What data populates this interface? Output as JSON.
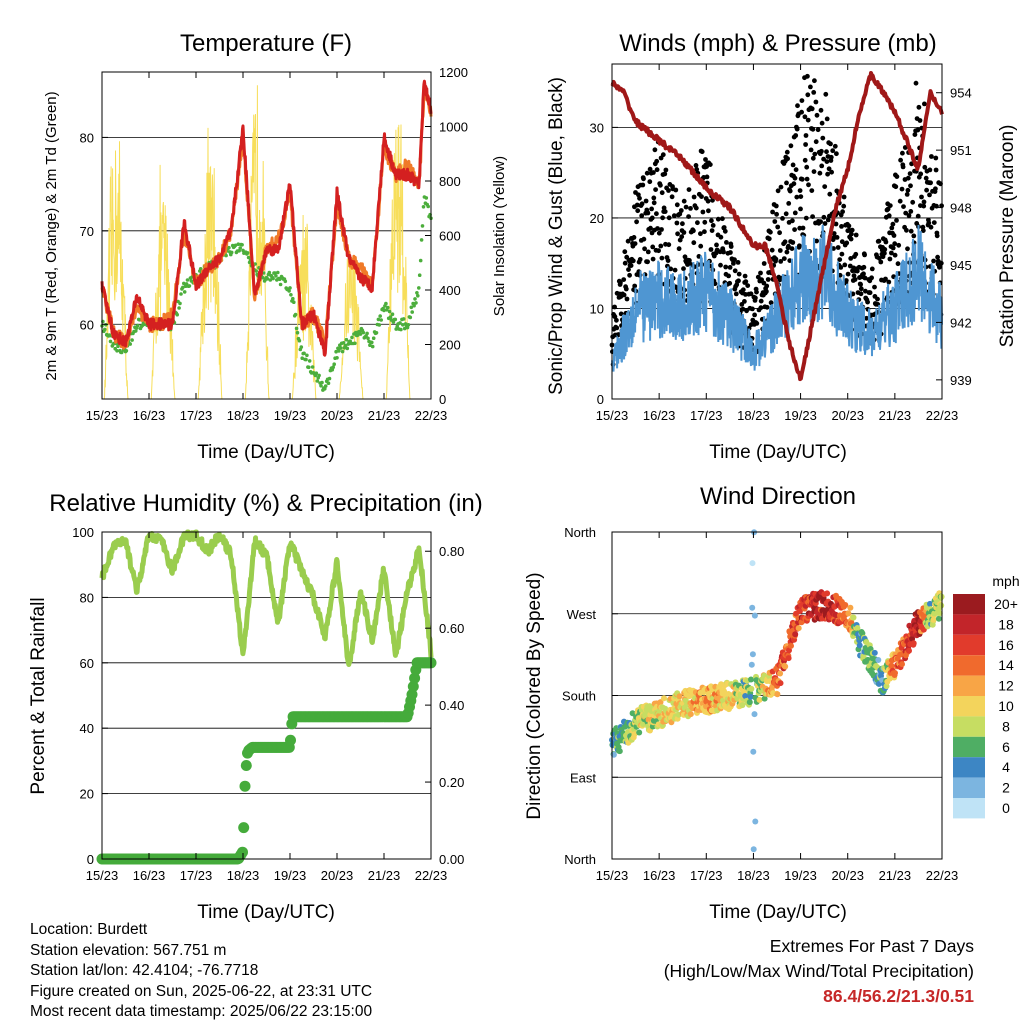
{
  "colors": {
    "red": "#d42020",
    "orange": "#f07a28",
    "green_td": "#4cae3c",
    "yellow": "#f7de5a",
    "blue": "#4f96d2",
    "black": "#000000",
    "maroon": "#a01818",
    "rh": "#9acd4e",
    "rain": "#45ab3b",
    "extremes": "#c62828"
  },
  "x_ticks": [
    "15/23",
    "16/23",
    "17/23",
    "18/23",
    "19/23",
    "20/23",
    "21/23",
    "22/23"
  ],
  "panels": {
    "temperature": {
      "title": "Temperature (F)",
      "xlabel": "Time (Day/UTC)",
      "ylabel_left": "2m & 9m T (Red, Orange) & 2m Td (Green)",
      "ylabel_right": "Solar Insolation (Yellow)",
      "left_ticks": [
        "60",
        "70",
        "80"
      ],
      "right_ticks": [
        "0",
        "200",
        "400",
        "600",
        "800",
        "1000",
        "1200"
      ]
    },
    "winds": {
      "title": "Winds (mph) & Pressure (mb)",
      "xlabel": "Time (Day/UTC)",
      "ylabel_left": "Sonic/Prop Wind & Gust (Blue, Black)",
      "ylabel_right": "Station Pressure (Maroon)",
      "left_ticks": [
        "0",
        "10",
        "20",
        "30"
      ],
      "right_ticks": [
        "939",
        "942",
        "945",
        "948",
        "951",
        "954"
      ]
    },
    "humidity": {
      "title": "Relative Humidity (%) & Precipitation (in)",
      "xlabel": "Time (Day/UTC)",
      "ylabel_left": "Percent & Total Rainfall",
      "left_ticks": [
        "0",
        "20",
        "40",
        "60",
        "80",
        "100"
      ],
      "right_ticks": [
        "0.00",
        "0.20",
        "0.40",
        "0.60",
        "0.80"
      ]
    },
    "direction": {
      "title": "Wind Direction",
      "xlabel": "Time (Day/UTC)",
      "ylabel_left": "Direction (Colored By Speed)",
      "dir_ticks": [
        "North",
        "East",
        "South",
        "West",
        "North"
      ],
      "legend_title": "mph",
      "legend_labels": [
        "20+",
        "18",
        "16",
        "14",
        "12",
        "10",
        "8",
        "6",
        "4",
        "2",
        "0"
      ],
      "legend_colors": [
        "#9b1b1f",
        "#c2252a",
        "#e13b2c",
        "#f06a2d",
        "#f8a546",
        "#f3d45c",
        "#c6dd62",
        "#4fae64",
        "#3d86c4",
        "#7cb5e0",
        "#bfe3f6"
      ]
    }
  },
  "info": {
    "location": "Location: Burdett",
    "elevation": "Station elevation: 567.751 m",
    "latlon": "Station lat/lon: 42.4104; -76.7718",
    "created": "Figure created on Sun, 2025-06-22, at 23:31 UTC",
    "recent": "Most recent data timestamp: 2025/06/22 23:15:00"
  },
  "extremes": {
    "title": "Extremes For Past 7 Days",
    "subtitle": "(High/Low/Max Wind/Total Precipitation)",
    "values": "86.4/56.2/21.3/0.51"
  },
  "chart_data": [
    {
      "type": "line",
      "title": "Temperature (F)",
      "xlabel": "Time (Day/UTC)",
      "x_range_days": [
        0,
        7
      ],
      "x": [
        0,
        0.25,
        0.5,
        0.75,
        1,
        1.25,
        1.5,
        1.75,
        2,
        2.25,
        2.5,
        2.75,
        3,
        3.25,
        3.5,
        3.75,
        4,
        4.25,
        4.5,
        4.75,
        5,
        5.25,
        5.5,
        5.75,
        6,
        6.25,
        6.5,
        6.75,
        6.85,
        7
      ],
      "ylim": [
        52,
        87
      ],
      "ylim_right": [
        0,
        1200
      ],
      "series": [
        {
          "name": "2m T (Red)",
          "axis": "left",
          "values": [
            64,
            59,
            58,
            63,
            60,
            60,
            60,
            71,
            64,
            66,
            67,
            70,
            81,
            63,
            68,
            68,
            75,
            60,
            61,
            57,
            74,
            67,
            65,
            64,
            80,
            76,
            76,
            75,
            86,
            83
          ]
        },
        {
          "name": "9m T (Orange)",
          "axis": "left",
          "values": [
            64,
            59,
            58,
            62,
            60,
            60,
            61,
            70,
            64,
            66,
            67,
            70,
            80,
            63,
            68,
            69,
            74,
            60,
            61,
            58,
            73,
            67,
            66,
            64,
            79,
            76,
            77,
            75,
            85,
            83
          ]
        },
        {
          "name": "2m Td (Green)",
          "axis": "left",
          "values": [
            60,
            58,
            57,
            60,
            60,
            60,
            60,
            64,
            65,
            66,
            67,
            68,
            68,
            66,
            65,
            65,
            64,
            57,
            55,
            53,
            57,
            58,
            59,
            58,
            62,
            60,
            60,
            64,
            74,
            71
          ]
        },
        {
          "name": "Solar Insolation (Yellow)",
          "axis": "right",
          "peaks": [
            950,
            780,
            900,
            1180,
            600,
            600,
            1100,
            1100
          ],
          "peak_x": [
            0.4,
            1.45,
            2.45,
            2.95,
            3.45,
            4.45,
            5.45,
            6.45
          ]
        }
      ]
    },
    {
      "type": "line",
      "title": "Winds (mph) & Pressure (mb)",
      "xlabel": "Time (Day/UTC)",
      "x_range_days": [
        0,
        7
      ],
      "ylim": [
        0,
        37
      ],
      "ylim_right": [
        938,
        955.5
      ],
      "series": [
        {
          "name": "Sonic/Prop Wind (Blue)",
          "axis": "left",
          "x": [
            0,
            0.5,
            1,
            1.5,
            2,
            2.5,
            3,
            3.5,
            4,
            4.5,
            5,
            5.5,
            6,
            6.5,
            7
          ],
          "values": [
            4,
            10,
            11,
            10,
            12,
            9,
            5,
            9,
            13,
            14,
            9,
            7,
            10,
            14,
            9
          ]
        },
        {
          "name": "Gust (Black)",
          "axis": "left",
          "x": [
            0,
            0.5,
            1,
            1.5,
            2,
            2.5,
            3,
            3.5,
            4,
            4.5,
            5,
            5.5,
            6,
            6.5,
            7
          ],
          "values": [
            6,
            16,
            20,
            15,
            20,
            12,
            8,
            16,
            25,
            24,
            14,
            10,
            17,
            25,
            16
          ]
        },
        {
          "name": "Station Pressure (Maroon)",
          "axis": "right",
          "x": [
            0,
            0.25,
            0.5,
            1,
            1.5,
            2,
            2.5,
            2.75,
            3,
            3.25,
            3.5,
            3.75,
            4,
            4.25,
            4.5,
            4.75,
            5,
            5.25,
            5.5,
            5.75,
            6,
            6.25,
            6.5,
            6.75,
            7
          ],
          "values": [
            954.5,
            954,
            952.5,
            951.5,
            950.5,
            949,
            948,
            947,
            946,
            946,
            944,
            941,
            939,
            942,
            945,
            948,
            950,
            953,
            955,
            954,
            953,
            951.5,
            950,
            954,
            953
          ]
        }
      ]
    },
    {
      "type": "line",
      "title": "Relative Humidity (%) & Precipitation (in)",
      "xlabel": "Time (Day/UTC)",
      "x_range_days": [
        0,
        7
      ],
      "ylim": [
        0,
        100
      ],
      "ylim_right": [
        0,
        0.85
      ],
      "series": [
        {
          "name": "Relative Humidity",
          "axis": "left",
          "x": [
            0,
            0.25,
            0.5,
            0.75,
            1,
            1.25,
            1.5,
            1.75,
            2,
            2.25,
            2.5,
            2.75,
            3,
            3.25,
            3.5,
            3.75,
            4,
            4.25,
            4.5,
            4.75,
            5,
            5.25,
            5.5,
            5.75,
            6,
            6.25,
            6.5,
            6.75,
            7
          ],
          "values": [
            86,
            96,
            97,
            82,
            99,
            98,
            88,
            99,
            99,
            94,
            99,
            93,
            62,
            97,
            93,
            72,
            97,
            88,
            80,
            68,
            91,
            58,
            82,
            67,
            89,
            62,
            82,
            95,
            63
          ]
        },
        {
          "name": "Total Rainfall",
          "axis": "right",
          "x": [
            0,
            2.9,
            3.0,
            3.05,
            3.1,
            3.2,
            4.0,
            4.05,
            5.5,
            6.0,
            6.5,
            6.6,
            6.7,
            7
          ],
          "values": [
            0,
            0,
            0.02,
            0.22,
            0.28,
            0.29,
            0.29,
            0.37,
            0.37,
            0.37,
            0.37,
            0.43,
            0.51,
            0.51
          ]
        }
      ]
    },
    {
      "type": "scatter",
      "title": "Wind Direction",
      "xlabel": "Time (Day/UTC)",
      "x_range_days": [
        0,
        7
      ],
      "ylim_deg": [
        0,
        360
      ],
      "y_ticks": [
        "North",
        "East",
        "South",
        "West",
        "North"
      ],
      "legend_title": "mph",
      "x": [
        0,
        0.5,
        1,
        1.5,
        2,
        2.5,
        3,
        3.5,
        4,
        4.5,
        5,
        5.25,
        5.5,
        5.75,
        6,
        6.5,
        6.75,
        7
      ],
      "direction_deg": [
        125,
        150,
        160,
        170,
        175,
        180,
        185,
        195,
        275,
        280,
        270,
        240,
        220,
        195,
        215,
        260,
        270,
        280
      ],
      "speed_mph": [
        4,
        8,
        10,
        10,
        12,
        10,
        6,
        14,
        16,
        18,
        14,
        4,
        6,
        5,
        14,
        18,
        6,
        10
      ]
    }
  ]
}
